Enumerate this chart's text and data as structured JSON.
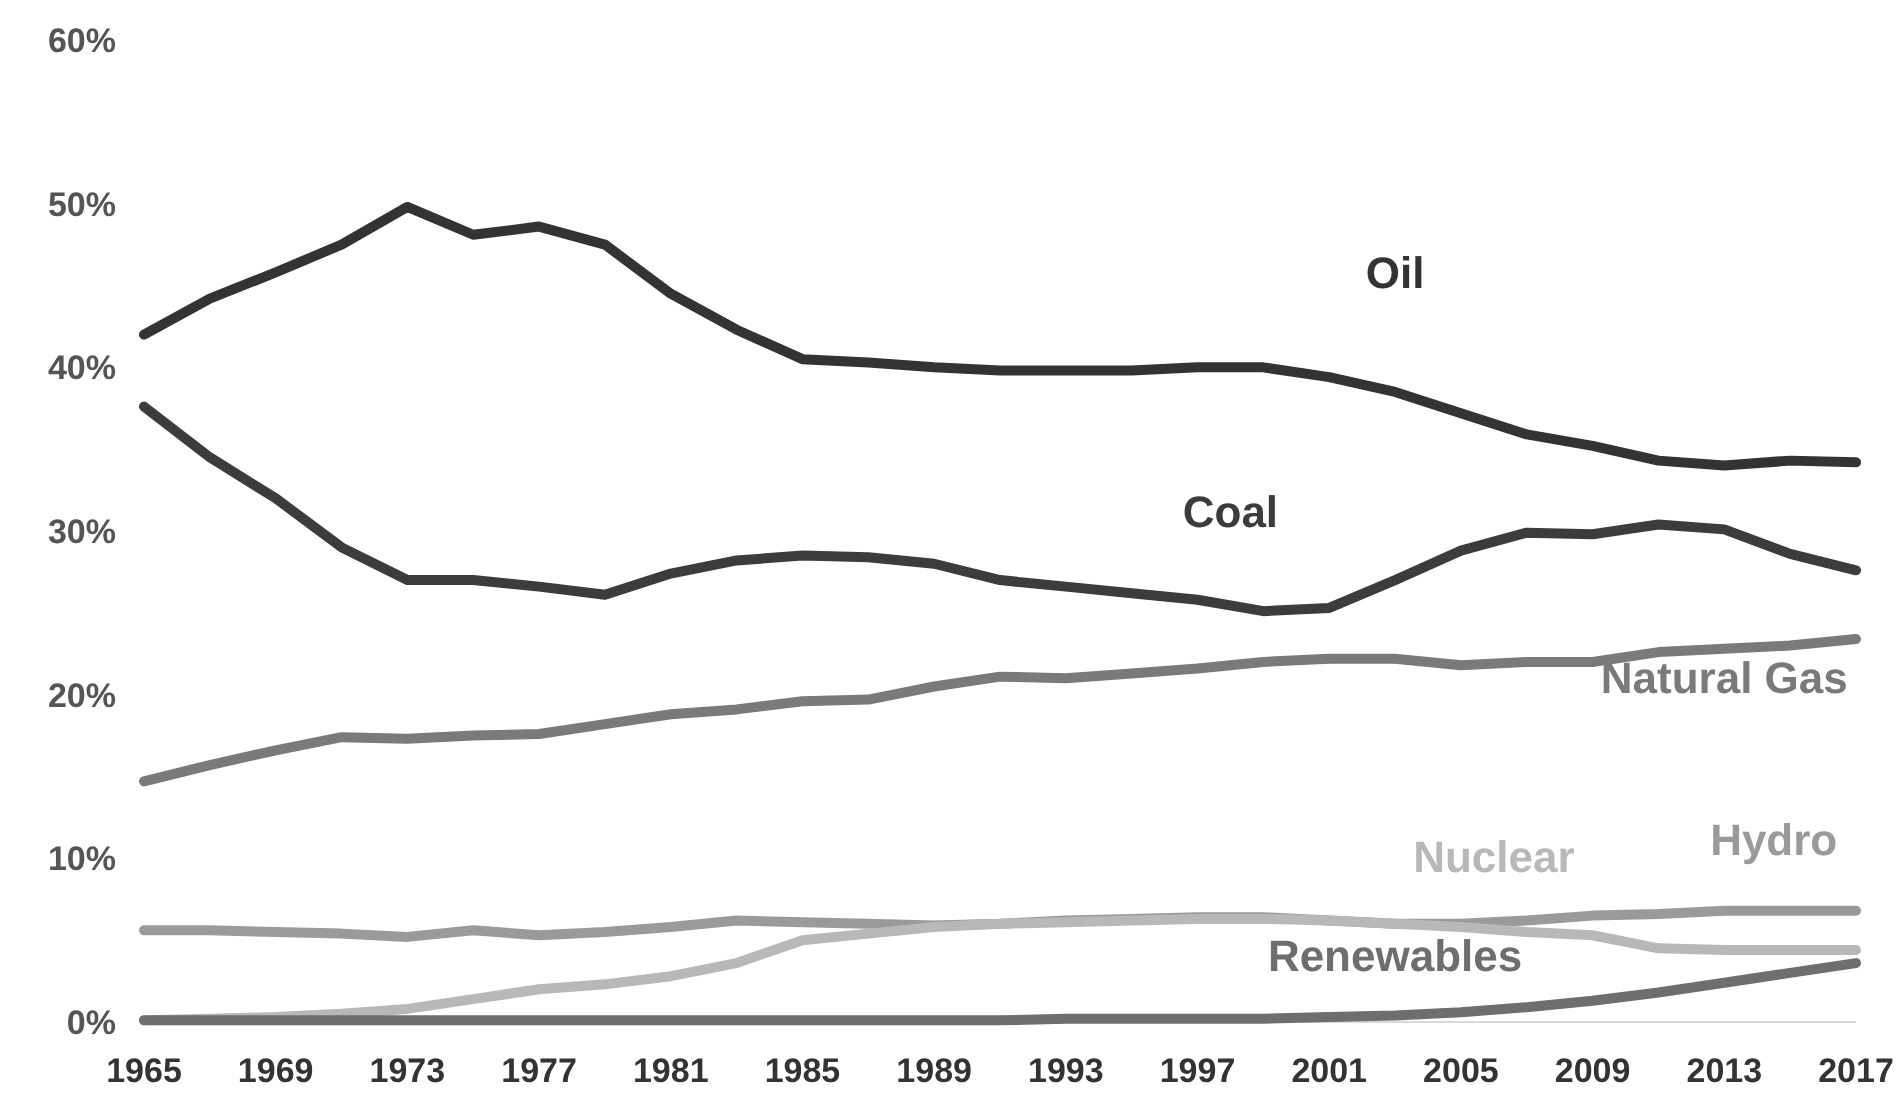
{
  "chart_data": {
    "type": "line",
    "x": [
      1965,
      1967,
      1969,
      1971,
      1973,
      1975,
      1977,
      1979,
      1981,
      1983,
      1985,
      1987,
      1989,
      1991,
      1993,
      1995,
      1997,
      1999,
      2001,
      2003,
      2005,
      2007,
      2009,
      2011,
      2013,
      2015,
      2017
    ],
    "xlim": [
      1965,
      2017
    ],
    "xticks": [
      1965,
      1969,
      1973,
      1977,
      1981,
      1985,
      1989,
      1993,
      1997,
      2001,
      2005,
      2009,
      2013,
      2017
    ],
    "ylim": [
      0,
      60
    ],
    "yticks": [
      {
        "value": 0,
        "label": "0%"
      },
      {
        "value": 10,
        "label": "10%"
      },
      {
        "value": 20,
        "label": "20%"
      },
      {
        "value": 30,
        "label": "30%"
      },
      {
        "value": 40,
        "label": "40%"
      },
      {
        "value": 50,
        "label": "50%"
      },
      {
        "value": 60,
        "label": "60%"
      }
    ],
    "grid": false,
    "legend": false,
    "marker": "none",
    "line_style": "solid",
    "series": [
      {
        "name": "Oil",
        "color": "#333333",
        "values": [
          42,
          44.2,
          45.8,
          47.5,
          49.8,
          48.1,
          48.6,
          47.5,
          44.5,
          42.3,
          40.5,
          40.3,
          40,
          39.8,
          39.8,
          39.8,
          40,
          40,
          39.4,
          38.5,
          37.2,
          35.9,
          35.2,
          34.3,
          34,
          34.3,
          34.2
        ]
      },
      {
        "name": "Coal",
        "color": "#3c3c3c",
        "values": [
          37.6,
          34.5,
          32,
          29,
          27,
          27,
          26.6,
          26.1,
          27.4,
          28.2,
          28.5,
          28.4,
          28,
          27,
          26.6,
          26.2,
          25.8,
          25.1,
          25.3,
          27,
          28.8,
          29.9,
          29.8,
          30.4,
          30.1,
          28.6,
          27.6
        ]
      },
      {
        "name": "Natural Gas",
        "color": "#7a7a7a",
        "values": [
          14.7,
          15.7,
          16.6,
          17.4,
          17.3,
          17.5,
          17.6,
          18.2,
          18.8,
          19.1,
          19.6,
          19.7,
          20.5,
          21.1,
          21,
          21.3,
          21.6,
          22,
          22.2,
          22.2,
          21.8,
          22,
          22,
          22.6,
          22.8,
          23,
          23.4
        ]
      },
      {
        "name": "Hydro",
        "color": "#9a9a9a",
        "values": [
          5.6,
          5.6,
          5.5,
          5.4,
          5.2,
          5.6,
          5.3,
          5.5,
          5.8,
          6.2,
          6.1,
          6,
          5.9,
          6,
          6.2,
          6.3,
          6.4,
          6.4,
          6.2,
          6,
          6,
          6.2,
          6.5,
          6.6,
          6.8,
          6.8,
          6.8
        ]
      },
      {
        "name": "Nuclear",
        "color": "#b8b8b8",
        "values": [
          0.1,
          0.2,
          0.3,
          0.5,
          0.8,
          1.4,
          2,
          2.3,
          2.8,
          3.6,
          5,
          5.4,
          5.8,
          6,
          6.1,
          6.2,
          6.3,
          6.3,
          6.2,
          6,
          5.8,
          5.5,
          5.3,
          4.5,
          4.4,
          4.4,
          4.4
        ]
      },
      {
        "name": "Renewables",
        "color": "#6e6e6e",
        "values": [
          0.1,
          0.1,
          0.1,
          0.1,
          0.1,
          0.1,
          0.1,
          0.1,
          0.1,
          0.1,
          0.1,
          0.1,
          0.1,
          0.1,
          0.2,
          0.2,
          0.2,
          0.2,
          0.3,
          0.4,
          0.6,
          0.9,
          1.3,
          1.8,
          2.4,
          3,
          3.6
        ]
      }
    ]
  }
}
